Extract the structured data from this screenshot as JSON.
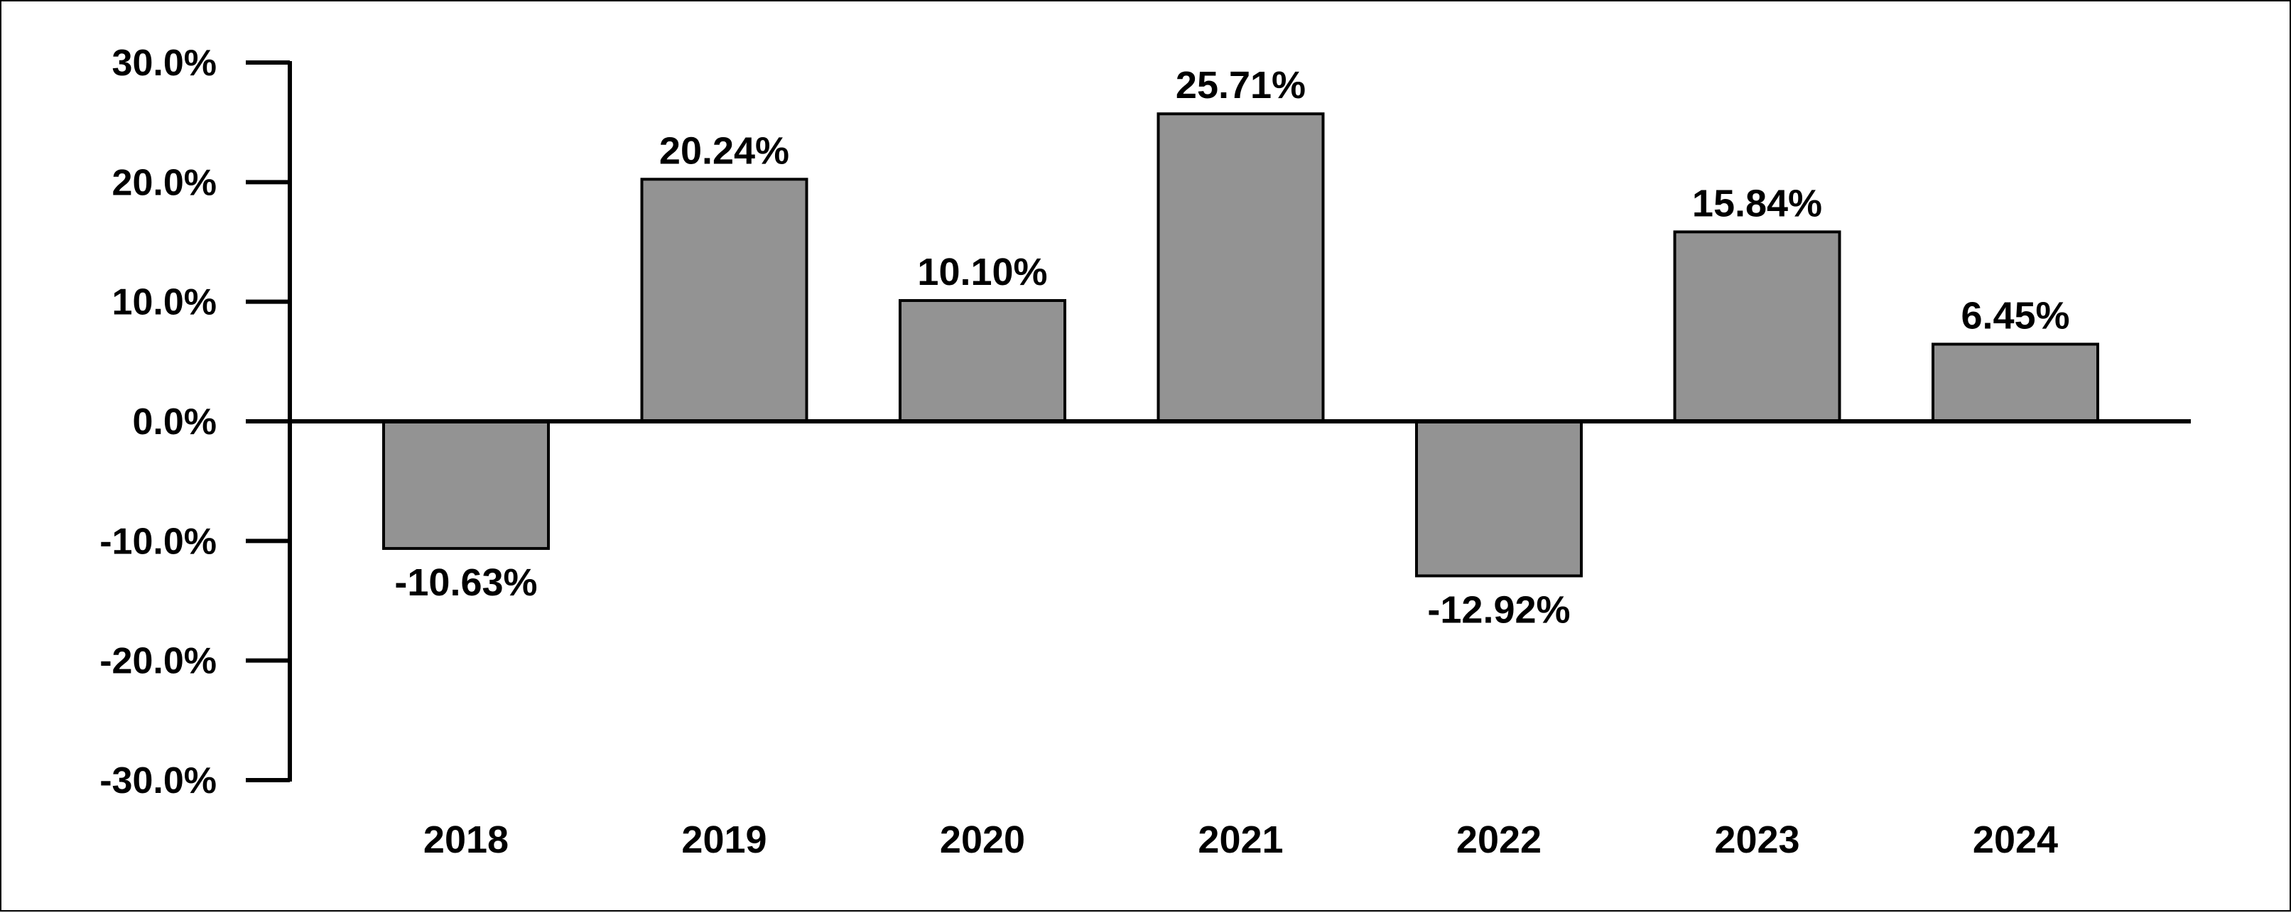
{
  "chart_data": {
    "type": "bar",
    "title": "",
    "xlabel": "",
    "ylabel": "",
    "categories": [
      "2018",
      "2019",
      "2020",
      "2021",
      "2022",
      "2023",
      "2024"
    ],
    "values": [
      -10.63,
      20.24,
      10.1,
      25.71,
      -12.92,
      15.84,
      6.45
    ],
    "data_labels": [
      "-10.63%",
      "20.24%",
      "10.10%",
      "25.71%",
      "-12.92%",
      "15.84%",
      "6.45%"
    ],
    "ylim": [
      -30,
      30
    ],
    "yticks": [
      30,
      20,
      10,
      0,
      -10,
      -20,
      -30
    ],
    "ytick_labels": [
      "30.0%",
      "20.0%",
      "10.0%",
      "0.0%",
      "-10.0%",
      "-20.0%",
      "-30.0%"
    ],
    "grid": false,
    "legend": "none",
    "bar_color": "#939393",
    "bar_edge_color": "#000000"
  }
}
